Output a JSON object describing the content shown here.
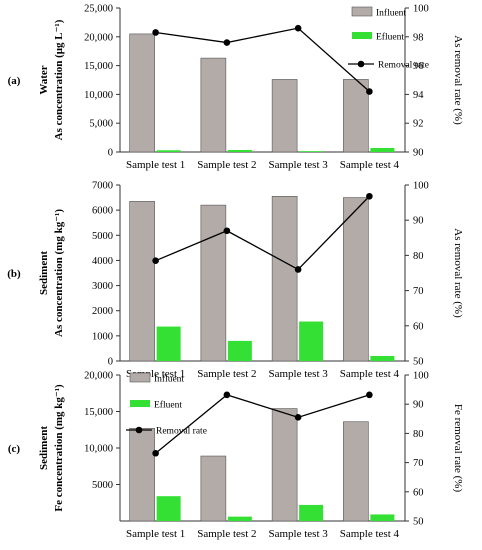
{
  "chart_data": [
    {
      "type": "bar",
      "panel_label": "(a)",
      "row_label": "Water",
      "ylabel": "As concentration (μg L⁻¹)",
      "y2label": "As removal rate (%)",
      "categories": [
        "Sample test 1",
        "Sample test 2",
        "Sample test 3",
        "Sample test 4"
      ],
      "series": [
        {
          "name": "Influent",
          "kind": "bar",
          "color": "#b3aba8",
          "values": [
            20500,
            16300,
            12600,
            12600
          ]
        },
        {
          "name": "Efluent",
          "kind": "bar",
          "color": "#33e033",
          "values": [
            300,
            350,
            150,
            700
          ]
        },
        {
          "name": "Removal rate",
          "kind": "line",
          "axis": "right",
          "color": "#000000",
          "values": [
            98.3,
            97.6,
            98.6,
            94.2
          ]
        }
      ],
      "ylim": [
        0,
        25000
      ],
      "yticks": [
        "0",
        "5,000",
        "10,000",
        "15,000",
        "20,000",
        "25,000"
      ],
      "y2lim": [
        90,
        100
      ],
      "y2ticks": [
        "90",
        "92",
        "94",
        "96",
        "98",
        "100"
      ],
      "legend": "top-right",
      "grid": false
    },
    {
      "type": "bar",
      "panel_label": "(b)",
      "row_label": "Sediment",
      "ylabel": "As concentration (mg kg⁻¹)",
      "y2label": "As removal rate (%)",
      "categories": [
        "Sample test 1",
        "Sample test 2",
        "Sample test 3",
        "Sample test 4"
      ],
      "series": [
        {
          "name": "Influent",
          "kind": "bar",
          "color": "#b3aba8",
          "values": [
            6350,
            6200,
            6550,
            6500
          ]
        },
        {
          "name": "Efluent",
          "kind": "bar",
          "color": "#33e033",
          "values": [
            1370,
            800,
            1570,
            200
          ]
        },
        {
          "name": "Removal rate",
          "kind": "line",
          "axis": "right",
          "color": "#000000",
          "values": [
            78.5,
            87,
            76,
            96.8
          ]
        }
      ],
      "ylim": [
        0,
        7000
      ],
      "yticks": [
        "0",
        "1000",
        "2000",
        "3000",
        "4000",
        "5000",
        "6000",
        "7000"
      ],
      "y2lim": [
        50,
        100
      ],
      "y2ticks": [
        "50",
        "60",
        "70",
        "80",
        "90",
        "100"
      ],
      "legend": "none",
      "grid": false
    },
    {
      "type": "bar",
      "panel_label": "(c)",
      "row_label": "Sediment",
      "ylabel": "Fe concentration (mg kg⁻¹)",
      "y2label": "Fe removal rate (%)",
      "categories": [
        "Sample test 1",
        "Sample test 2",
        "Sample test 3",
        "Sample test 4"
      ],
      "series": [
        {
          "name": "Influent",
          "kind": "bar",
          "color": "#b3aba8",
          "values": [
            12700,
            8900,
            15400,
            13600
          ]
        },
        {
          "name": "Efluent",
          "kind": "bar",
          "color": "#33e033",
          "values": [
            3400,
            600,
            2200,
            900
          ]
        },
        {
          "name": "Removal rate",
          "kind": "line",
          "axis": "right",
          "color": "#000000",
          "values": [
            73.2,
            93.2,
            85.5,
            93.2
          ]
        }
      ],
      "ylim": [
        0,
        20000
      ],
      "yticks": [
        "5000",
        "10,000",
        "15,000",
        "20,000"
      ],
      "y2lim": [
        50,
        100
      ],
      "y2ticks": [
        "50",
        "60",
        "70",
        "80",
        "90",
        "100"
      ],
      "legend": "top-left",
      "grid": false
    }
  ]
}
